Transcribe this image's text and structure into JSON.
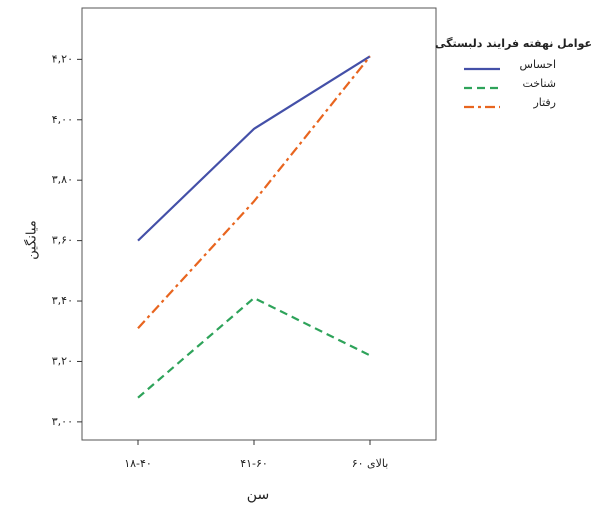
{
  "chart_data": {
    "type": "line",
    "x_label": "سن",
    "y_label": "میانگین",
    "legend_title": "عوامل نهفته فرایند دلبستگی",
    "legend": "right-outside",
    "categories": [
      "۱۸-۴۰",
      "۴۱-۶۰",
      "بالای ۶۰"
    ],
    "series": [
      {
        "name": "احساس",
        "color": "#4450a8",
        "dash": "solid",
        "values": [
          3.6,
          3.97,
          4.21
        ]
      },
      {
        "name": "شناخت",
        "color": "#2ea35a",
        "dash": "dashed",
        "values": [
          3.08,
          3.41,
          3.22
        ]
      },
      {
        "name": "رفتار",
        "color": "#e8651f",
        "dash": "dashdot",
        "values": [
          3.31,
          3.73,
          4.21
        ]
      }
    ],
    "ylim": [
      2.94,
      4.37
    ],
    "yticks": [
      {
        "value": 3.0,
        "label": "۳,۰۰"
      },
      {
        "value": 3.2,
        "label": "۳,۲۰"
      },
      {
        "value": 3.4,
        "label": "۳,۴۰"
      },
      {
        "value": 3.6,
        "label": "۳,۶۰"
      },
      {
        "value": 3.8,
        "label": "۳,۸۰"
      },
      {
        "value": 4.0,
        "label": "۴,۰۰"
      },
      {
        "value": 4.2,
        "label": "۴,۲۰"
      }
    ]
  }
}
